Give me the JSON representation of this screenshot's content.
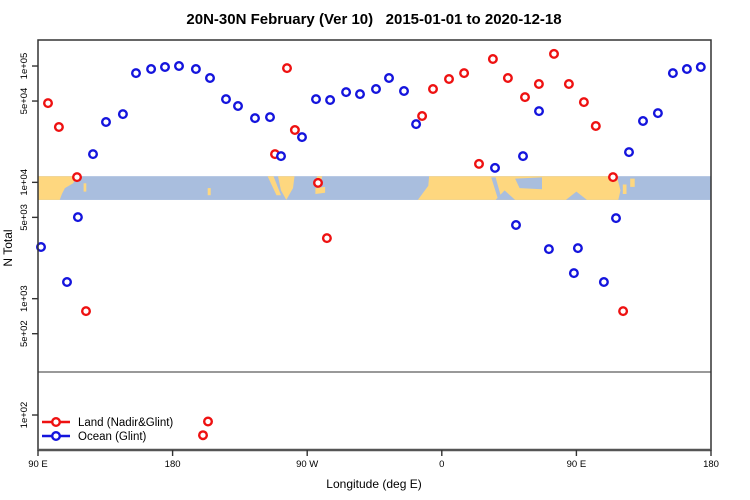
{
  "title": "20N-30N February (Ver 10)   2015-01-01 to 2020-12-18",
  "colors": {
    "land_series": "#ee1111",
    "ocean_series": "#1414dd",
    "band_ocean": "#a9bede",
    "band_land": "#fed77f",
    "reference_line": "#999999",
    "axis": "#333333"
  },
  "legend": {
    "items": [
      {
        "label": "Land (Nadir&Glint)",
        "color": "#ee1111"
      },
      {
        "label": "Ocean (Glint)",
        "color": "#1414dd"
      }
    ]
  },
  "chart_data": {
    "type": "scatter",
    "title": "20N-30N February (Ver 10)   2015-01-01 to 2020-12-18",
    "xlabel": "Longitude (deg E)",
    "ylabel": "N Total",
    "x_axis": {
      "range": [
        90,
        540
      ],
      "ticks": [
        90,
        180,
        270,
        360,
        450,
        540
      ],
      "tick_labels": [
        "90 E",
        "180",
        "90 W",
        "0",
        "90 E",
        "180"
      ],
      "note": "longitude axis wraps: 90E through 180, 90W, 0, 90E to 180"
    },
    "y_axis": {
      "scale": "log",
      "ticks": [
        100000,
        50000,
        10000,
        5000,
        1000,
        500,
        100
      ],
      "tick_labels": [
        "1e+05",
        "5e+04",
        "1e+04",
        "5e+03",
        "1e+03",
        "5e+02",
        "1e+02"
      ],
      "range": [
        50,
        170000
      ]
    },
    "reference_line_n": 234,
    "series": [
      {
        "name": "Land (Nadir&Glint)",
        "color": "#ee1111",
        "points": [
          [
            96.7,
            48000
          ],
          [
            104.0,
            29900
          ],
          [
            116.1,
            11100
          ],
          [
            122.1,
            782
          ],
          [
            200.3,
            67
          ],
          [
            203.7,
            88
          ],
          [
            248.5,
            17500
          ],
          [
            256.5,
            96000
          ],
          [
            261.8,
            28200
          ],
          [
            277.2,
            9900
          ],
          [
            283.2,
            3320
          ],
          [
            346.8,
            37200
          ],
          [
            354.1,
            63400
          ],
          [
            364.8,
            77300
          ],
          [
            374.9,
            87000
          ],
          [
            384.9,
            14400
          ],
          [
            394.2,
            115000
          ],
          [
            404.2,
            78900
          ],
          [
            415.6,
            54100
          ],
          [
            424.9,
            70000
          ],
          [
            435.0,
            127000
          ],
          [
            445.0,
            70000
          ],
          [
            455.0,
            49000
          ],
          [
            463.0,
            30500
          ],
          [
            474.5,
            11100
          ],
          [
            481.2,
            782
          ]
        ]
      },
      {
        "name": "Ocean (Glint)",
        "color": "#1414dd",
        "points": [
          [
            92.0,
            2780
          ],
          [
            109.4,
            1390
          ],
          [
            116.7,
            5030
          ],
          [
            126.8,
            17500
          ],
          [
            135.5,
            33000
          ],
          [
            146.8,
            38600
          ],
          [
            155.5,
            87000
          ],
          [
            165.6,
            94200
          ],
          [
            174.9,
            98000
          ],
          [
            184.3,
            100000
          ],
          [
            195.6,
            94200
          ],
          [
            205.0,
            78900
          ],
          [
            215.7,
            52000
          ],
          [
            223.7,
            45300
          ],
          [
            235.1,
            35700
          ],
          [
            245.1,
            36400
          ],
          [
            252.5,
            16800
          ],
          [
            266.5,
            24500
          ],
          [
            275.9,
            52000
          ],
          [
            285.3,
            51000
          ],
          [
            296.0,
            59700
          ],
          [
            305.3,
            57400
          ],
          [
            316.0,
            63400
          ],
          [
            324.7,
            78900
          ],
          [
            334.7,
            61000
          ],
          [
            342.8,
            31700
          ],
          [
            395.6,
            13300
          ],
          [
            409.6,
            4300
          ],
          [
            414.3,
            16800
          ],
          [
            425.0,
            41000
          ],
          [
            431.6,
            2670
          ],
          [
            448.3,
            1660
          ],
          [
            451.0,
            2720
          ],
          [
            468.4,
            1390
          ],
          [
            476.5,
            4930
          ],
          [
            485.2,
            18200
          ],
          [
            494.5,
            33700
          ],
          [
            504.5,
            39400
          ],
          [
            514.5,
            87000
          ],
          [
            523.9,
            94200
          ],
          [
            533.2,
            98000
          ]
        ]
      }
    ],
    "map_band": {
      "n_top": 11300,
      "n_bottom": 7060,
      "ocean_color": "#a9bede",
      "land_color": "#fed77f",
      "land_polygons": [
        [
          [
            90,
            0
          ],
          [
            116,
            0
          ],
          [
            113.5,
            0.3
          ],
          [
            108,
            0.5
          ],
          [
            106,
            0.75
          ],
          [
            104.5,
            1
          ],
          [
            90,
            1
          ]
        ],
        [
          [
            120.5,
            0.3
          ],
          [
            122.3,
            0.3
          ],
          [
            122.3,
            0.65
          ],
          [
            120.5,
            0.65
          ]
        ],
        [
          [
            203.5,
            0.5
          ],
          [
            205.5,
            0.5
          ],
          [
            205.5,
            0.8
          ],
          [
            203.5,
            0.8
          ]
        ],
        [
          [
            243.5,
            0
          ],
          [
            247.5,
            0
          ],
          [
            252.5,
            0.8
          ],
          [
            249.5,
            0.8
          ]
        ],
        [
          [
            250.5,
            0
          ],
          [
            261.5,
            0
          ],
          [
            260.5,
            0.5
          ],
          [
            256,
            1
          ],
          [
            252.5,
            0.6
          ]
        ],
        [
          [
            276.5,
            0
          ],
          [
            280,
            0
          ],
          [
            278.8,
            0.3
          ],
          [
            276.5,
            0.3
          ]
        ],
        [
          [
            275.5,
            0.5
          ],
          [
            282,
            0.45
          ],
          [
            282,
            0.7
          ],
          [
            275.5,
            0.75
          ]
        ],
        [
          [
            344,
            1
          ],
          [
            351,
            0.4
          ],
          [
            351.5,
            0
          ],
          [
            477,
            0
          ],
          [
            479.5,
            0.6
          ],
          [
            478,
            1
          ]
        ],
        [
          [
            481,
            0.35
          ],
          [
            483.5,
            0.35
          ],
          [
            483.5,
            0.75
          ],
          [
            481,
            0.75
          ]
        ],
        [
          [
            486,
            0.1
          ],
          [
            489,
            0.1
          ],
          [
            489,
            0.45
          ],
          [
            486,
            0.45
          ]
        ]
      ],
      "ocean_overlay_polygons": [
        [
          [
            393,
            0.05
          ],
          [
            396,
            0.05
          ],
          [
            400,
            0.95
          ],
          [
            397.5,
            0.95
          ]
        ],
        [
          [
            409,
            0.1
          ],
          [
            427,
            0.05
          ],
          [
            427,
            0.55
          ],
          [
            412,
            0.5
          ]
        ],
        [
          [
            396,
            1
          ],
          [
            402,
            0.6
          ],
          [
            409,
            1
          ]
        ],
        [
          [
            443,
            1
          ],
          [
            450,
            0.65
          ],
          [
            457,
            1
          ]
        ]
      ]
    }
  }
}
